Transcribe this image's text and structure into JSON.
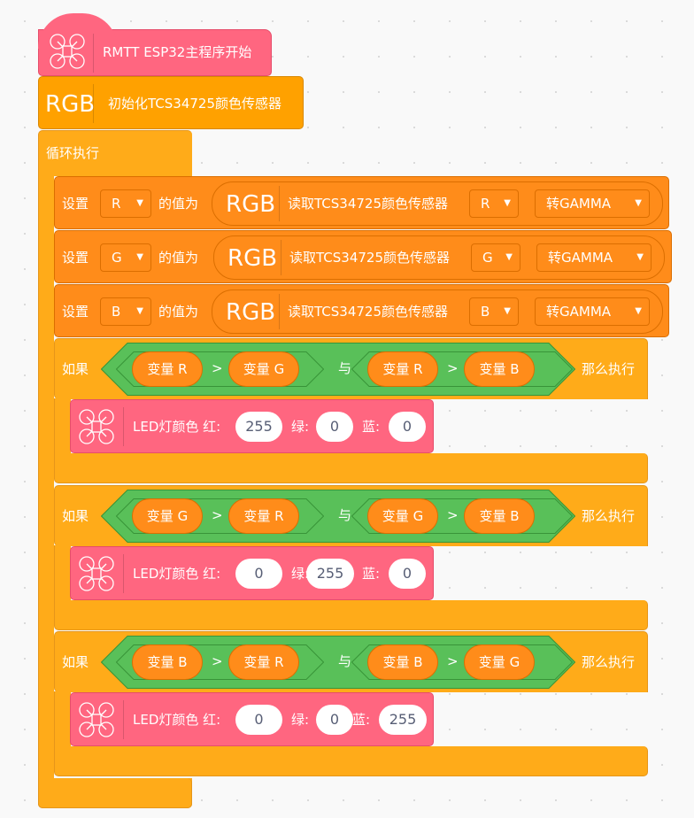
{
  "hat": {
    "label": "RMTT ESP32主程序开始",
    "icon": "drone-icon"
  },
  "init": {
    "icon_text": "RGB",
    "label": "初始化TCS34725颜色传感器"
  },
  "loop": {
    "label": "循环执行"
  },
  "set_rows": [
    {
      "set_label": "设置",
      "var": "R",
      "value_label": "的值为",
      "icon_text": "RGB",
      "read_label": "读取TCS34725颜色传感器",
      "channel": "R",
      "mode": "转GAMMA"
    },
    {
      "set_label": "设置",
      "var": "G",
      "value_label": "的值为",
      "icon_text": "RGB",
      "read_label": "读取TCS34725颜色传感器",
      "channel": "G",
      "mode": "转GAMMA"
    },
    {
      "set_label": "设置",
      "var": "B",
      "value_label": "的值为",
      "icon_text": "RGB",
      "read_label": "读取TCS34725颜色传感器",
      "channel": "B",
      "mode": "转GAMMA"
    }
  ],
  "if_blocks": [
    {
      "if_label": "如果",
      "cond1": {
        "left": "变量 R",
        "op": ">",
        "right": "变量 G"
      },
      "and_label": "与",
      "cond2": {
        "left": "变量 R",
        "op": ">",
        "right": "变量 B"
      },
      "then_label": "那么执行",
      "led": {
        "label": "LED灯颜色 红:",
        "red": "255",
        "green_label": "绿:",
        "green": "0",
        "blue_label": "蓝:",
        "blue": "0"
      }
    },
    {
      "if_label": "如果",
      "cond1": {
        "left": "变量 G",
        "op": ">",
        "right": "变量 R"
      },
      "and_label": "与",
      "cond2": {
        "left": "变量 G",
        "op": ">",
        "right": "变量 B"
      },
      "then_label": "那么执行",
      "led": {
        "label": "LED灯颜色 红:",
        "red": "0",
        "green_label": "绿:",
        "green": "255",
        "blue_label": "蓝:",
        "blue": "0"
      }
    },
    {
      "if_label": "如果",
      "cond1": {
        "left": "变量 B",
        "op": ">",
        "right": "变量 R"
      },
      "and_label": "与",
      "cond2": {
        "left": "变量 B",
        "op": ">",
        "right": "变量 G"
      },
      "then_label": "那么执行",
      "led": {
        "label": "LED灯颜色 红:",
        "red": "0",
        "green_label": "绿:",
        "green": "0",
        "blue_label": "蓝:",
        "blue": "255"
      }
    }
  ],
  "colors": {
    "event_pink": "#ff6680",
    "control": "#ffab19",
    "sensor": "#ff8c1a",
    "operator_green": "#59c059"
  }
}
